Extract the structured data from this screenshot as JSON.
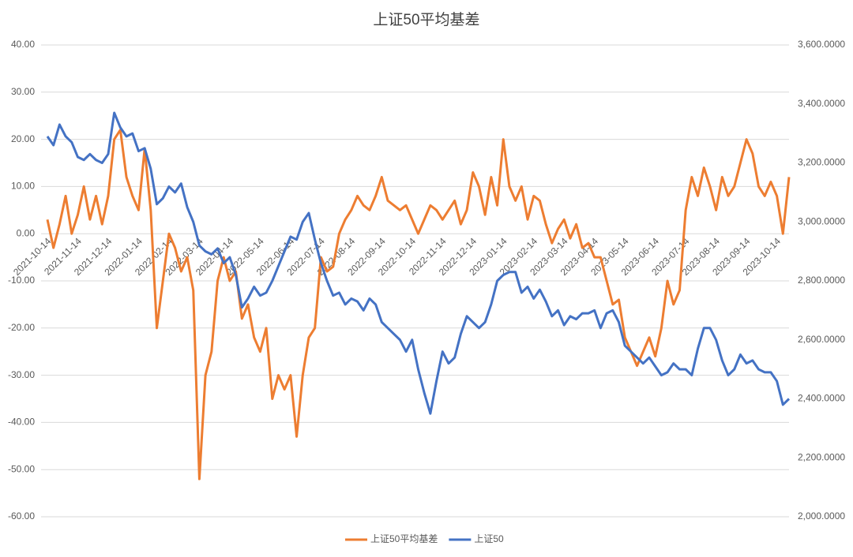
{
  "chart_data": {
    "type": "line",
    "title": "上证50平均基差",
    "categories": [
      "2021-10-14",
      null,
      null,
      null,
      null,
      "2021-11-14",
      null,
      null,
      null,
      null,
      "2021-12-14",
      null,
      null,
      null,
      null,
      "2022-01-14",
      null,
      null,
      null,
      null,
      "2022-02-14",
      null,
      null,
      null,
      null,
      "2022-03-14",
      null,
      null,
      null,
      null,
      "2022-04-14",
      null,
      null,
      null,
      null,
      "2022-05-14",
      null,
      null,
      null,
      null,
      "2022-06-14",
      null,
      null,
      null,
      null,
      "2022-07-14",
      null,
      null,
      null,
      null,
      "2022-08-14",
      null,
      null,
      null,
      null,
      "2022-09-14",
      null,
      null,
      null,
      null,
      "2022-10-14",
      null,
      null,
      null,
      null,
      "2022-11-14",
      null,
      null,
      null,
      null,
      "2022-12-14",
      null,
      null,
      null,
      null,
      "2023-01-14",
      null,
      null,
      null,
      null,
      "2023-02-14",
      null,
      null,
      null,
      null,
      "2023-03-14",
      null,
      null,
      null,
      null,
      "2023-04-14",
      null,
      null,
      null,
      null,
      "2023-05-14",
      null,
      null,
      null,
      null,
      "2023-06-14",
      null,
      null,
      null,
      null,
      "2023-07-14",
      null,
      null,
      null,
      null,
      "2023-08-14",
      null,
      null,
      null,
      null,
      "2023-09-14",
      null,
      null,
      null,
      null,
      "2023-10-14",
      null,
      null
    ],
    "series": [
      {
        "name": "上证50平均基差",
        "color": "#ED7D31",
        "axis": "y",
        "values": [
          3,
          -3,
          2,
          8,
          0,
          4,
          10,
          3,
          8,
          2,
          8,
          20,
          22,
          12,
          8,
          5,
          18,
          5,
          -20,
          -10,
          0,
          -3,
          -8,
          -5,
          -12,
          -52,
          -30,
          -25,
          -10,
          -5,
          -10,
          -8,
          -18,
          -15,
          -22,
          -25,
          -20,
          -35,
          -30,
          -33,
          -30,
          -43,
          -30,
          -22,
          -20,
          -5,
          -8,
          -7,
          0,
          3,
          5,
          8,
          6,
          5,
          8,
          12,
          7,
          6,
          5,
          6,
          3,
          0,
          3,
          6,
          5,
          3,
          5,
          7,
          2,
          5,
          13,
          10,
          4,
          12,
          6,
          20,
          10,
          7,
          10,
          3,
          8,
          7,
          2,
          -2,
          1,
          3,
          -1,
          2,
          -3,
          -2,
          -5,
          -5,
          -10,
          -15,
          -14,
          -22,
          -25,
          -28,
          -25,
          -22,
          -26,
          -20,
          -10,
          -15,
          -12,
          5,
          12,
          8,
          14,
          10,
          5,
          12,
          8,
          10,
          15,
          20,
          17,
          10,
          8,
          11,
          8,
          0,
          12
        ]
      },
      {
        "name": "上证50",
        "color": "#4472C4",
        "axis": "y2",
        "values": [
          3290,
          3260,
          3330,
          3290,
          3270,
          3220,
          3210,
          3230,
          3210,
          3200,
          3230,
          3370,
          3320,
          3290,
          3300,
          3240,
          3250,
          3180,
          3060,
          3080,
          3120,
          3100,
          3130,
          3050,
          3000,
          2920,
          2900,
          2890,
          2910,
          2860,
          2880,
          2820,
          2710,
          2740,
          2780,
          2750,
          2760,
          2800,
          2850,
          2900,
          2950,
          2940,
          3000,
          3030,
          2940,
          2860,
          2800,
          2750,
          2760,
          2720,
          2740,
          2730,
          2700,
          2740,
          2720,
          2660,
          2640,
          2620,
          2600,
          2560,
          2600,
          2500,
          2420,
          2350,
          2460,
          2560,
          2520,
          2540,
          2620,
          2680,
          2660,
          2640,
          2660,
          2720,
          2800,
          2820,
          2830,
          2830,
          2760,
          2780,
          2740,
          2770,
          2730,
          2680,
          2700,
          2650,
          2680,
          2670,
          2690,
          2690,
          2700,
          2640,
          2690,
          2700,
          2660,
          2580,
          2560,
          2540,
          2520,
          2540,
          2510,
          2480,
          2490,
          2520,
          2500,
          2500,
          2480,
          2570,
          2640,
          2640,
          2600,
          2530,
          2480,
          2500,
          2550,
          2520,
          2530,
          2500,
          2490,
          2490,
          2460,
          2380,
          2400
        ]
      }
    ],
    "ylim": [
      -60,
      40
    ],
    "yticks": [
      {
        "value": -60,
        "label": "-60.00"
      },
      {
        "value": -50,
        "label": "-50.00"
      },
      {
        "value": -40,
        "label": "-40.00"
      },
      {
        "value": -30,
        "label": "-30.00"
      },
      {
        "value": -20,
        "label": "-20.00"
      },
      {
        "value": -10,
        "label": "-10.00"
      },
      {
        "value": 0,
        "label": "0.00"
      },
      {
        "value": 10,
        "label": "10.00"
      },
      {
        "value": 20,
        "label": "20.00"
      },
      {
        "value": 30,
        "label": "30.00"
      },
      {
        "value": 40,
        "label": "40.00"
      }
    ],
    "y2lim": [
      2000,
      3600
    ],
    "y2ticks": [
      {
        "value": 2000,
        "label": "2,000.0000"
      },
      {
        "value": 2200,
        "label": "2,200.0000"
      },
      {
        "value": 2400,
        "label": "2,400.0000"
      },
      {
        "value": 2600,
        "label": "2,600.0000"
      },
      {
        "value": 2800,
        "label": "2,800.0000"
      },
      {
        "value": 3000,
        "label": "3,000.0000"
      },
      {
        "value": 3200,
        "label": "3,200.0000"
      },
      {
        "value": 3400,
        "label": "3,400.0000"
      },
      {
        "value": 3600,
        "label": "3,600.0000"
      }
    ],
    "grid": true,
    "legend": "bottom"
  }
}
